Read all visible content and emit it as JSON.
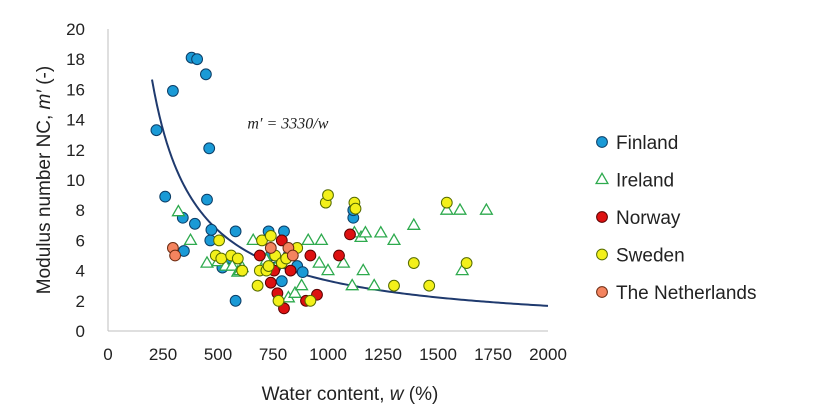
{
  "chart_data": {
    "type": "scatter",
    "xlabel_parts": [
      "Water content, ",
      "w",
      " (%)"
    ],
    "ylabel_parts": [
      "Modulus number NC, ",
      "m′",
      " (-)"
    ],
    "xlim": [
      0,
      2000
    ],
    "ylim": [
      0,
      20
    ],
    "xticks": [
      0,
      250,
      500,
      750,
      1000,
      1250,
      1500,
      1750,
      2000
    ],
    "yticks": [
      0,
      2,
      4,
      6,
      8,
      10,
      12,
      14,
      16,
      18,
      20
    ],
    "grid": false,
    "legend_position": "right",
    "annotation": {
      "text": "m′ = 3330/w",
      "x": 870,
      "y": 13.4
    },
    "fit_curve": {
      "equation": "m′ = 3330/w",
      "coefficient": 3330,
      "x_range": [
        200,
        2000
      ],
      "color": "#1f3a6e"
    },
    "series": [
      {
        "name": "Finland",
        "marker": "circle",
        "fill": "#1a9ad6",
        "stroke": "#0b3d66",
        "x": [
          220,
          295,
          380,
          405,
          445,
          460,
          450,
          260,
          340,
          345,
          395,
          465,
          470,
          520,
          580,
          560,
          580,
          730,
          800,
          740,
          760,
          790,
          820,
          860,
          885,
          1115,
          1115
        ],
        "y": [
          13.3,
          15.9,
          18.1,
          18.0,
          17.0,
          12.1,
          8.7,
          8.9,
          7.5,
          5.3,
          7.1,
          6.0,
          6.7,
          4.2,
          6.6,
          4.8,
          2.0,
          6.6,
          6.6,
          5.0,
          4.2,
          3.3,
          5.0,
          4.3,
          3.9,
          7.5,
          8.0
        ]
      },
      {
        "name": "Ireland",
        "marker": "triangle",
        "fill": "#ffffff",
        "stroke": "#2eaa4e",
        "x": [
          320,
          375,
          450,
          500,
          535,
          565,
          590,
          600,
          610,
          660,
          720,
          780,
          820,
          850,
          880,
          910,
          960,
          970,
          1000,
          1070,
          1110,
          1120,
          1150,
          1160,
          1170,
          1210,
          1240,
          1300,
          1390,
          1540,
          1600,
          1610,
          1720
        ],
        "y": [
          7.9,
          6.0,
          4.5,
          4.6,
          4.3,
          4.3,
          3.9,
          4.0,
          4.2,
          6.0,
          4.7,
          4.6,
          2.2,
          2.5,
          3.0,
          6.0,
          4.5,
          6.0,
          4.0,
          4.5,
          3.0,
          6.5,
          6.2,
          4.0,
          6.5,
          3.0,
          6.5,
          6.0,
          7.0,
          8.0,
          8.0,
          4.0,
          8.0
        ]
      },
      {
        "name": "Norway",
        "marker": "circle",
        "fill": "#dd1111",
        "stroke": "#5a0000",
        "x": [
          690,
          740,
          755,
          770,
          790,
          800,
          830,
          840,
          900,
          920,
          950,
          1050,
          1100
        ],
        "y": [
          5.0,
          3.2,
          4.0,
          2.5,
          6.0,
          1.5,
          4.0,
          5.3,
          2.0,
          5.0,
          2.4,
          5.0,
          6.4
        ]
      },
      {
        "name": "Sweden",
        "marker": "circle",
        "fill": "#f3f01a",
        "stroke": "#556b00",
        "x": [
          490,
          505,
          515,
          560,
          590,
          610,
          680,
          690,
          700,
          720,
          730,
          740,
          760,
          775,
          790,
          810,
          860,
          920,
          990,
          1000,
          1120,
          1125,
          1300,
          1390,
          1460,
          1540,
          1630
        ],
        "y": [
          5.0,
          6.0,
          4.8,
          5.0,
          4.8,
          4.0,
          3.0,
          4.0,
          6.0,
          4.0,
          4.3,
          6.3,
          5.0,
          2.0,
          4.5,
          4.8,
          5.5,
          2.0,
          8.5,
          9.0,
          8.5,
          8.1,
          3.0,
          4.5,
          3.0,
          8.5,
          4.5
        ]
      },
      {
        "name": "The Netherlands",
        "marker": "circle",
        "fill": "#f4845f",
        "stroke": "#6b2a10",
        "x": [
          295,
          305,
          740,
          820,
          840
        ],
        "y": [
          5.5,
          5.0,
          5.5,
          5.5,
          5.0
        ]
      }
    ]
  }
}
